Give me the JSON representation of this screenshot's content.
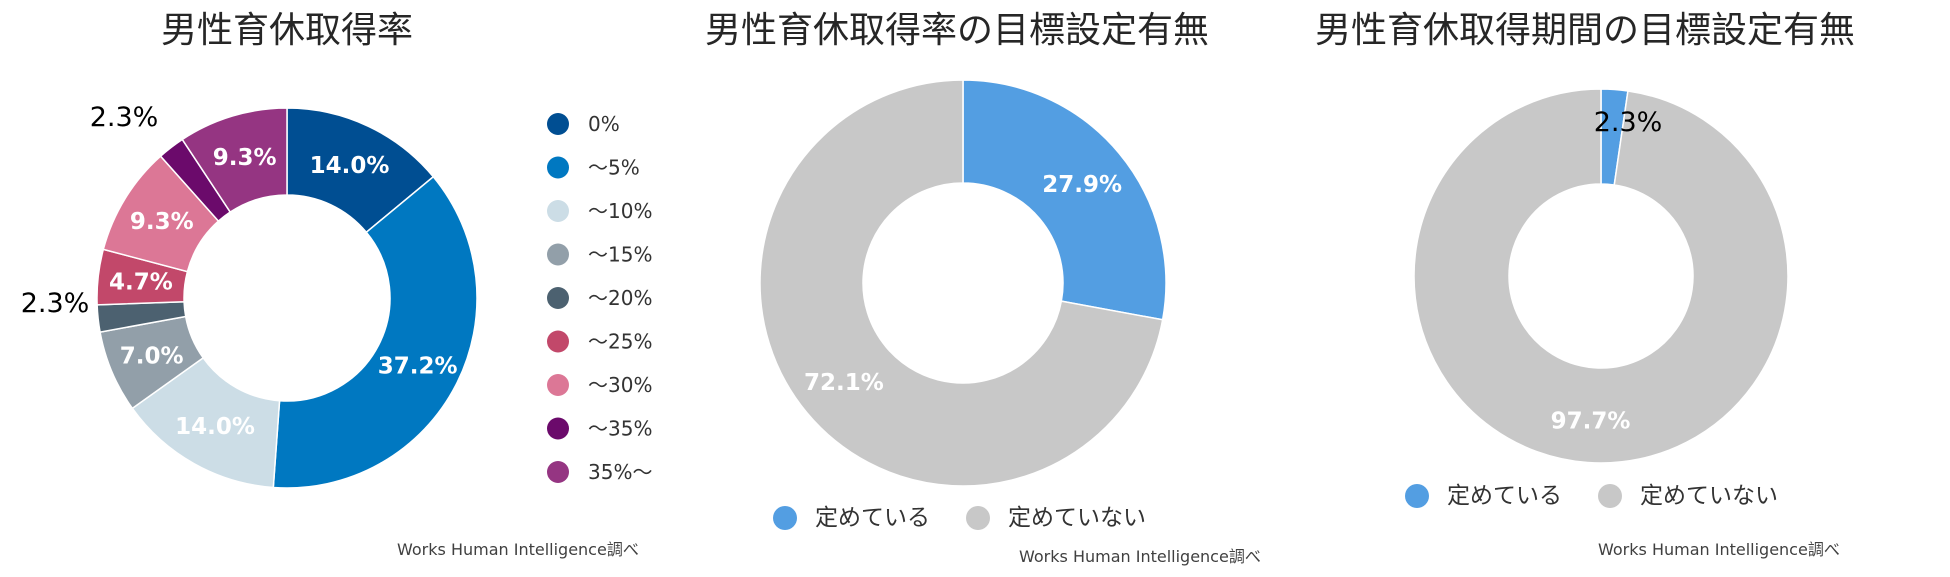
{
  "chart_data": [
    {
      "type": "pie",
      "title": "男性育休取得率",
      "categories": [
        "0%",
        "～5%",
        "～10%",
        "～15%",
        "～20%",
        "～25%",
        "～30%",
        "～35%",
        "35%～"
      ],
      "values": [
        14.0,
        37.2,
        14.0,
        7.0,
        2.3,
        4.7,
        9.3,
        2.3,
        9.3
      ],
      "labels": [
        "14.0%",
        "37.2%",
        "14.0%",
        "7.0%",
        "2.3%",
        "4.7%",
        "9.3%",
        "2.3%",
        "9.3%"
      ],
      "colors": [
        "#004e92",
        "#0078c1",
        "#ccdde6",
        "#929fa9",
        "#4c6170",
        "#c2486a",
        "#dc7796",
        "#6b0a6b",
        "#953582"
      ],
      "legend": "right",
      "source": "Works Human Intelligence調べ"
    },
    {
      "type": "pie",
      "title": "男性育休取得率の目標設定有無",
      "categories": [
        "定めている",
        "定めていない"
      ],
      "values": [
        27.9,
        72.1
      ],
      "labels": [
        "27.9%",
        "72.1%"
      ],
      "colors": [
        "#539ee2",
        "#c8c8c8"
      ],
      "legend": "bottom",
      "source": "Works Human Intelligence調べ"
    },
    {
      "type": "pie",
      "title": "男性育休取得期間の目標設定有無",
      "categories": [
        "定めている",
        "定めていない"
      ],
      "values": [
        2.3,
        97.7
      ],
      "labels": [
        "2.3%",
        "97.7%"
      ],
      "colors": [
        "#539ee2",
        "#c8c8c8"
      ],
      "legend": "bottom",
      "source": "Works Human Intelligence調べ"
    }
  ]
}
